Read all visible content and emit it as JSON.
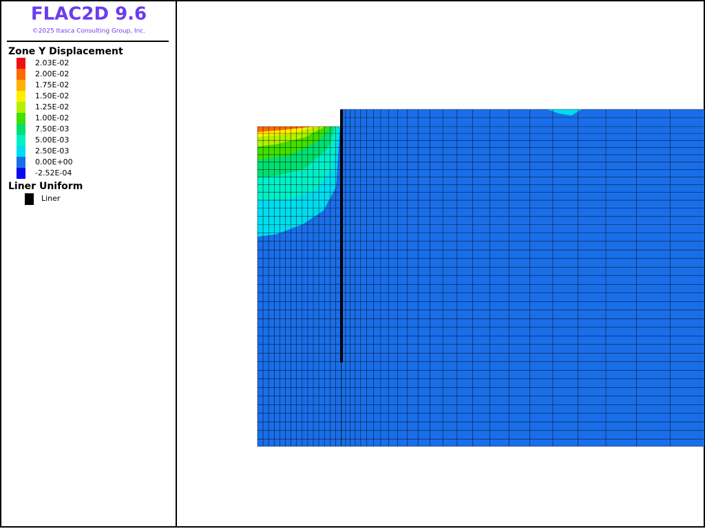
{
  "header": {
    "title": "FLAC2D 9.6",
    "copyright": "©2025 Itasca Consulting Group, Inc."
  },
  "legend": {
    "title": "Zone Y Displacement",
    "items": [
      {
        "label": "2.03E-02",
        "color": "#f01010"
      },
      {
        "label": "2.00E-02",
        "color": "#ff6a00"
      },
      {
        "label": "1.75E-02",
        "color": "#ffb000"
      },
      {
        "label": "1.50E-02",
        "color": "#ffee00"
      },
      {
        "label": "1.25E-02",
        "color": "#b4f000"
      },
      {
        "label": "1.00E-02",
        "color": "#40e000"
      },
      {
        "label": "7.50E-03",
        "color": "#00e070"
      },
      {
        "label": "5.00E-03",
        "color": "#00f0c8"
      },
      {
        "label": "2.50E-03",
        "color": "#00dcf0"
      },
      {
        "label": "0.00E+00",
        "color": "#1a6ee8"
      },
      {
        "label": "-2.52E-04",
        "color": "#0a0af0"
      }
    ]
  },
  "liner_legend": {
    "title": "Liner Uniform",
    "items": [
      {
        "label": "Liner",
        "color": "#000000"
      }
    ]
  }
}
